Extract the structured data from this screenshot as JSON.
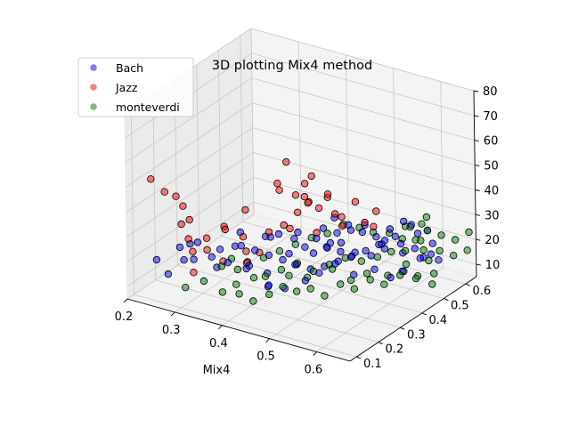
{
  "chart_data": {
    "type": "scatter",
    "projection": "3d",
    "title": "3D plotting Mix4 method",
    "xlabel": "Mix4",
    "ylabel": "",
    "zlabel": "",
    "grid": true,
    "legend_placement": "top-left",
    "xlim": [
      0.2,
      0.67
    ],
    "ylim": [
      0.07,
      0.65
    ],
    "zlim": [
      5,
      80
    ],
    "x_ticks": [
      0.2,
      0.3,
      0.4,
      0.5,
      0.6
    ],
    "y_ticks": [
      0.1,
      0.2,
      0.3,
      0.4,
      0.5,
      0.6
    ],
    "z_ticks": [
      10,
      20,
      30,
      40,
      50,
      60,
      70,
      80
    ],
    "x_tick_labels": [
      "0.2",
      "0.3",
      "0.4",
      "0.5",
      "0.6"
    ],
    "y_tick_labels": [
      "0.1",
      "0.2",
      "0.3",
      "0.4",
      "0.5",
      "0.6"
    ],
    "z_tick_labels": [
      "10",
      "20",
      "30",
      "40",
      "50",
      "60",
      "70",
      "80"
    ],
    "series": [
      {
        "name": "Bach",
        "color": "#0000ff",
        "points": [
          [
            0.24,
            0.12,
            20
          ],
          [
            0.25,
            0.15,
            13
          ],
          [
            0.27,
            0.18,
            18
          ],
          [
            0.28,
            0.14,
            26
          ],
          [
            0.3,
            0.16,
            21
          ],
          [
            0.29,
            0.2,
            25
          ],
          [
            0.26,
            0.23,
            21
          ],
          [
            0.33,
            0.2,
            17
          ],
          [
            0.36,
            0.22,
            26
          ],
          [
            0.38,
            0.24,
            18
          ],
          [
            0.42,
            0.29,
            30
          ],
          [
            0.44,
            0.32,
            17
          ],
          [
            0.47,
            0.34,
            22
          ],
          [
            0.49,
            0.36,
            24
          ],
          [
            0.51,
            0.38,
            26
          ],
          [
            0.53,
            0.4,
            22
          ],
          [
            0.55,
            0.43,
            20
          ],
          [
            0.57,
            0.45,
            26
          ],
          [
            0.59,
            0.48,
            24
          ],
          [
            0.61,
            0.5,
            22
          ],
          [
            0.63,
            0.53,
            19
          ],
          [
            0.62,
            0.56,
            21
          ],
          [
            0.6,
            0.58,
            24
          ],
          [
            0.58,
            0.55,
            27
          ],
          [
            0.56,
            0.52,
            23
          ],
          [
            0.54,
            0.5,
            20
          ],
          [
            0.52,
            0.47,
            18
          ],
          [
            0.5,
            0.45,
            16
          ],
          [
            0.48,
            0.43,
            14
          ],
          [
            0.46,
            0.41,
            12
          ],
          [
            0.44,
            0.39,
            11
          ],
          [
            0.42,
            0.37,
            13
          ],
          [
            0.4,
            0.35,
            15
          ],
          [
            0.38,
            0.33,
            17
          ],
          [
            0.36,
            0.31,
            19
          ],
          [
            0.34,
            0.29,
            21
          ],
          [
            0.45,
            0.48,
            27
          ],
          [
            0.47,
            0.5,
            24
          ],
          [
            0.49,
            0.52,
            21
          ],
          [
            0.51,
            0.54,
            19
          ],
          [
            0.53,
            0.56,
            22
          ],
          [
            0.55,
            0.58,
            25
          ],
          [
            0.57,
            0.6,
            20
          ],
          [
            0.4,
            0.42,
            22
          ],
          [
            0.43,
            0.44,
            20
          ],
          [
            0.45,
            0.46,
            18
          ],
          [
            0.48,
            0.49,
            23
          ],
          [
            0.5,
            0.51,
            25
          ],
          [
            0.52,
            0.53,
            17
          ],
          [
            0.39,
            0.4,
            14
          ],
          [
            0.41,
            0.43,
            16
          ],
          [
            0.44,
            0.45,
            24
          ],
          [
            0.46,
            0.47,
            22
          ],
          [
            0.35,
            0.38,
            20
          ],
          [
            0.37,
            0.36,
            22
          ],
          [
            0.3,
            0.28,
            18
          ],
          [
            0.32,
            0.33,
            23
          ],
          [
            0.55,
            0.35,
            17
          ],
          [
            0.58,
            0.38,
            19
          ],
          [
            0.6,
            0.41,
            15
          ],
          [
            0.64,
            0.46,
            22
          ],
          [
            0.66,
            0.5,
            20
          ],
          [
            0.62,
            0.42,
            18
          ],
          [
            0.45,
            0.25,
            12
          ],
          [
            0.48,
            0.28,
            15
          ],
          [
            0.5,
            0.3,
            18
          ],
          [
            0.52,
            0.33,
            21
          ],
          [
            0.54,
            0.36,
            23
          ],
          [
            0.43,
            0.22,
            14
          ],
          [
            0.41,
            0.26,
            10
          ],
          [
            0.39,
            0.3,
            12
          ],
          [
            0.36,
            0.27,
            14
          ],
          [
            0.33,
            0.25,
            16
          ],
          [
            0.31,
            0.22,
            19
          ],
          [
            0.42,
            0.36,
            24
          ],
          [
            0.47,
            0.4,
            21
          ],
          [
            0.49,
            0.42,
            19
          ],
          [
            0.56,
            0.47,
            21
          ],
          [
            0.58,
            0.51,
            18
          ],
          [
            0.61,
            0.54,
            16
          ]
        ]
      },
      {
        "name": "Jazz",
        "color": "#ff0000",
        "points": [
          [
            0.23,
            0.12,
            52
          ],
          [
            0.24,
            0.16,
            45
          ],
          [
            0.25,
            0.19,
            42
          ],
          [
            0.26,
            0.2,
            38
          ],
          [
            0.27,
            0.17,
            33
          ],
          [
            0.28,
            0.18,
            27
          ],
          [
            0.25,
            0.25,
            29
          ],
          [
            0.3,
            0.22,
            26
          ],
          [
            0.31,
            0.2,
            23
          ],
          [
            0.33,
            0.24,
            30
          ],
          [
            0.35,
            0.29,
            36
          ],
          [
            0.36,
            0.27,
            21
          ],
          [
            0.37,
            0.25,
            18
          ],
          [
            0.39,
            0.31,
            28
          ],
          [
            0.4,
            0.33,
            47
          ],
          [
            0.41,
            0.35,
            55
          ],
          [
            0.42,
            0.37,
            41
          ],
          [
            0.43,
            0.39,
            45
          ],
          [
            0.44,
            0.4,
            48
          ],
          [
            0.45,
            0.41,
            35
          ],
          [
            0.46,
            0.43,
            40
          ],
          [
            0.47,
            0.44,
            32
          ],
          [
            0.48,
            0.45,
            27
          ],
          [
            0.44,
            0.42,
            24
          ],
          [
            0.42,
            0.41,
            38
          ],
          [
            0.45,
            0.45,
            37
          ],
          [
            0.47,
            0.47,
            29
          ],
          [
            0.49,
            0.49,
            35
          ],
          [
            0.5,
            0.51,
            26
          ],
          [
            0.52,
            0.52,
            31
          ],
          [
            0.5,
            0.55,
            22
          ],
          [
            0.38,
            0.4,
            25
          ],
          [
            0.4,
            0.42,
            30
          ],
          [
            0.41,
            0.45,
            33
          ],
          [
            0.39,
            0.36,
            42
          ],
          [
            0.43,
            0.32,
            31
          ],
          [
            0.45,
            0.36,
            40
          ],
          [
            0.3,
            0.3,
            26
          ],
          [
            0.32,
            0.25,
            16
          ],
          [
            0.34,
            0.3,
            24
          ],
          [
            0.27,
            0.22,
            19
          ],
          [
            0.29,
            0.18,
            14
          ],
          [
            0.36,
            0.33,
            17
          ]
        ]
      },
      {
        "name": "monteverdi",
        "color": "#008000",
        "points": [
          [
            0.3,
            0.12,
            12
          ],
          [
            0.33,
            0.14,
            15
          ],
          [
            0.36,
            0.16,
            11
          ],
          [
            0.38,
            0.18,
            14
          ],
          [
            0.4,
            0.15,
            13
          ],
          [
            0.42,
            0.17,
            10
          ],
          [
            0.44,
            0.2,
            12
          ],
          [
            0.46,
            0.22,
            15
          ],
          [
            0.48,
            0.24,
            13
          ],
          [
            0.5,
            0.26,
            14
          ],
          [
            0.52,
            0.28,
            11
          ],
          [
            0.54,
            0.31,
            15
          ],
          [
            0.56,
            0.33,
            13
          ],
          [
            0.58,
            0.36,
            16
          ],
          [
            0.6,
            0.38,
            14
          ],
          [
            0.62,
            0.41,
            17
          ],
          [
            0.64,
            0.44,
            15
          ],
          [
            0.66,
            0.47,
            12
          ],
          [
            0.65,
            0.5,
            14
          ],
          [
            0.63,
            0.52,
            17
          ],
          [
            0.61,
            0.54,
            19
          ],
          [
            0.59,
            0.57,
            20
          ],
          [
            0.57,
            0.59,
            18
          ],
          [
            0.55,
            0.61,
            21
          ],
          [
            0.53,
            0.63,
            19
          ],
          [
            0.51,
            0.6,
            17
          ],
          [
            0.49,
            0.57,
            18
          ],
          [
            0.47,
            0.55,
            20
          ],
          [
            0.45,
            0.52,
            22
          ],
          [
            0.43,
            0.49,
            19
          ],
          [
            0.41,
            0.46,
            18
          ],
          [
            0.39,
            0.43,
            16
          ],
          [
            0.37,
            0.4,
            14
          ],
          [
            0.35,
            0.37,
            12
          ],
          [
            0.33,
            0.34,
            11
          ],
          [
            0.31,
            0.31,
            13
          ],
          [
            0.6,
            0.58,
            24
          ],
          [
            0.62,
            0.6,
            22
          ],
          [
            0.64,
            0.62,
            20
          ],
          [
            0.66,
            0.64,
            23
          ],
          [
            0.58,
            0.62,
            26
          ],
          [
            0.56,
            0.64,
            21
          ],
          [
            0.63,
            0.57,
            18
          ],
          [
            0.65,
            0.59,
            16
          ],
          [
            0.67,
            0.61,
            18
          ],
          [
            0.52,
            0.45,
            15
          ],
          [
            0.5,
            0.42,
            17
          ],
          [
            0.48,
            0.39,
            15
          ],
          [
            0.46,
            0.36,
            13
          ],
          [
            0.54,
            0.48,
            16
          ],
          [
            0.56,
            0.5,
            18
          ],
          [
            0.44,
            0.33,
            17
          ],
          [
            0.42,
            0.3,
            15
          ],
          [
            0.4,
            0.27,
            13
          ],
          [
            0.6,
            0.47,
            14
          ],
          [
            0.62,
            0.49,
            12
          ],
          [
            0.58,
            0.44,
            13
          ],
          [
            0.53,
            0.38,
            12
          ],
          [
            0.55,
            0.41,
            14
          ],
          [
            0.36,
            0.23,
            16
          ],
          [
            0.34,
            0.2,
            18
          ],
          [
            0.38,
            0.26,
            12
          ],
          [
            0.57,
            0.53,
            22
          ],
          [
            0.59,
            0.5,
            20
          ],
          [
            0.61,
            0.46,
            18
          ],
          [
            0.5,
            0.36,
            16
          ],
          [
            0.47,
            0.31,
            14
          ],
          [
            0.45,
            0.27,
            16
          ]
        ]
      }
    ]
  }
}
